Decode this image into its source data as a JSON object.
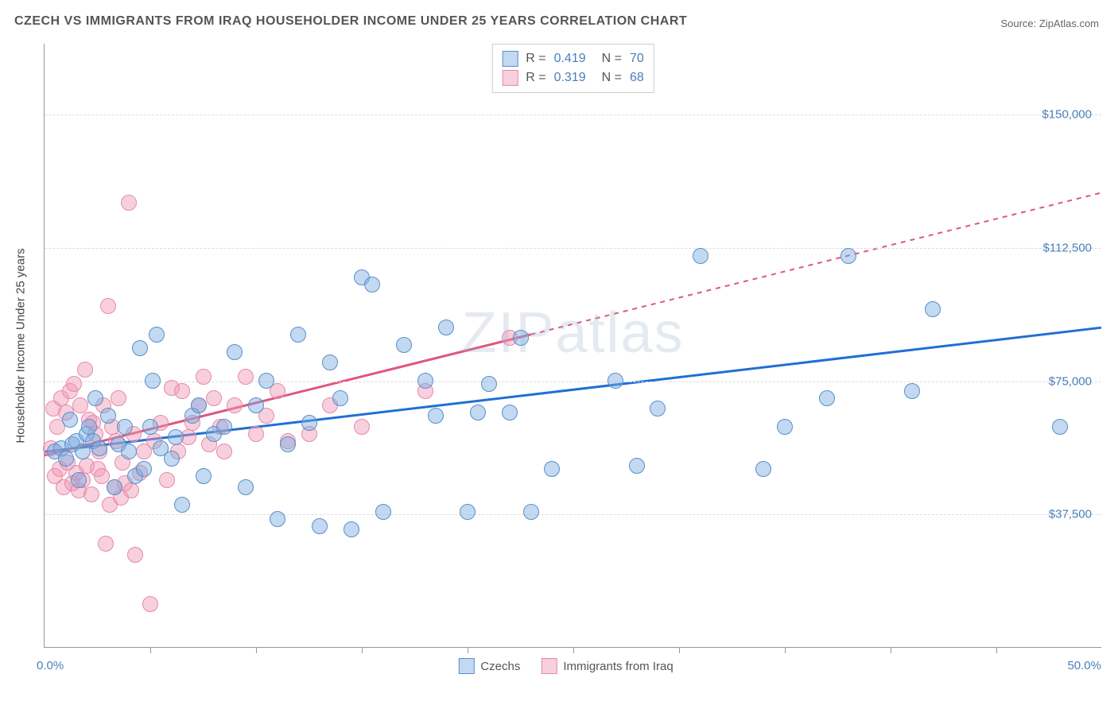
{
  "title": "CZECH VS IMMIGRANTS FROM IRAQ HOUSEHOLDER INCOME UNDER 25 YEARS CORRELATION CHART",
  "source": "Source: ZipAtlas.com",
  "watermark": "ZIPatlas",
  "chart": {
    "type": "scatter",
    "background_color": "#ffffff",
    "grid_color": "#dddddd",
    "axis_color": "#999999",
    "text_color": "#555555",
    "value_color": "#4a7ebb",
    "xlim": [
      0,
      50
    ],
    "ylim": [
      0,
      170000
    ],
    "x_axis": {
      "label_left": "0.0%",
      "label_right": "50.0%",
      "tick_positions_pct": [
        10,
        20,
        30,
        40,
        50,
        60,
        70,
        80,
        90
      ]
    },
    "y_axis": {
      "title": "Householder Income Under 25 years",
      "ticks": [
        {
          "value": 37500,
          "label": "$37,500"
        },
        {
          "value": 75000,
          "label": "$75,000"
        },
        {
          "value": 112500,
          "label": "$112,500"
        },
        {
          "value": 150000,
          "label": "$150,000"
        }
      ]
    },
    "series": [
      {
        "name": "Czechs",
        "label": "Czechs",
        "fill_color": "rgba(120,170,225,0.45)",
        "stroke_color": "#5a8fc8",
        "line_color": "#1f6fd4",
        "marker_radius": 10,
        "R": "0.419",
        "N": "70",
        "trend": {
          "x1": 0,
          "y1": 55000,
          "x2": 50,
          "y2": 90000,
          "solid_until_x": 50
        },
        "points": [
          [
            0.5,
            55000
          ],
          [
            0.8,
            56000
          ],
          [
            1.0,
            53000
          ],
          [
            1.2,
            64000
          ],
          [
            1.3,
            57000
          ],
          [
            1.5,
            58000
          ],
          [
            1.6,
            47000
          ],
          [
            1.8,
            55000
          ],
          [
            2.0,
            60000
          ],
          [
            2.1,
            62000
          ],
          [
            2.3,
            58000
          ],
          [
            2.4,
            70000
          ],
          [
            2.6,
            56000
          ],
          [
            3.0,
            65000
          ],
          [
            3.3,
            45000
          ],
          [
            3.5,
            57000
          ],
          [
            3.8,
            62000
          ],
          [
            4.0,
            55000
          ],
          [
            4.3,
            48000
          ],
          [
            4.5,
            84000
          ],
          [
            4.7,
            50000
          ],
          [
            5.0,
            62000
          ],
          [
            5.1,
            75000
          ],
          [
            5.3,
            88000
          ],
          [
            5.5,
            56000
          ],
          [
            6.0,
            53000
          ],
          [
            6.2,
            59000
          ],
          [
            6.5,
            40000
          ],
          [
            7.0,
            65000
          ],
          [
            7.3,
            68000
          ],
          [
            7.5,
            48000
          ],
          [
            8.0,
            60000
          ],
          [
            8.5,
            62000
          ],
          [
            9.0,
            83000
          ],
          [
            9.5,
            45000
          ],
          [
            10.0,
            68000
          ],
          [
            10.5,
            75000
          ],
          [
            11.0,
            36000
          ],
          [
            11.5,
            57000
          ],
          [
            12.0,
            88000
          ],
          [
            12.5,
            63000
          ],
          [
            13.0,
            34000
          ],
          [
            13.5,
            80000
          ],
          [
            14.0,
            70000
          ],
          [
            14.5,
            33000
          ],
          [
            15.0,
            104000
          ],
          [
            15.5,
            102000
          ],
          [
            16.0,
            38000
          ],
          [
            17.0,
            85000
          ],
          [
            18.0,
            75000
          ],
          [
            18.5,
            65000
          ],
          [
            19.0,
            90000
          ],
          [
            20.0,
            38000
          ],
          [
            20.5,
            66000
          ],
          [
            21.0,
            74000
          ],
          [
            22.0,
            66000
          ],
          [
            22.5,
            87000
          ],
          [
            23.0,
            38000
          ],
          [
            24.0,
            50000
          ],
          [
            27.0,
            75000
          ],
          [
            28.0,
            51000
          ],
          [
            29.0,
            67000
          ],
          [
            31.0,
            110000
          ],
          [
            34.0,
            50000
          ],
          [
            35.0,
            62000
          ],
          [
            37.0,
            70000
          ],
          [
            38.0,
            110000
          ],
          [
            41.0,
            72000
          ],
          [
            42.0,
            95000
          ],
          [
            48.0,
            62000
          ]
        ]
      },
      {
        "name": "Immigrants from Iraq",
        "label": "Immigrants from Iraq",
        "fill_color": "rgba(240,150,180,0.45)",
        "stroke_color": "#e68aa8",
        "line_color": "#e05580",
        "marker_radius": 10,
        "R": "0.319",
        "N": "68",
        "trend": {
          "x1": 0,
          "y1": 54000,
          "x2": 50,
          "y2": 128000,
          "solid_until_x": 23
        },
        "points": [
          [
            0.3,
            56000
          ],
          [
            0.4,
            67000
          ],
          [
            0.5,
            48000
          ],
          [
            0.6,
            62000
          ],
          [
            0.7,
            50000
          ],
          [
            0.8,
            70000
          ],
          [
            0.9,
            45000
          ],
          [
            1.0,
            66000
          ],
          [
            1.1,
            52000
          ],
          [
            1.2,
            72000
          ],
          [
            1.3,
            46000
          ],
          [
            1.4,
            74000
          ],
          [
            1.5,
            49000
          ],
          [
            1.6,
            44000
          ],
          [
            1.7,
            68000
          ],
          [
            1.8,
            47000
          ],
          [
            1.9,
            78000
          ],
          [
            2.0,
            51000
          ],
          [
            2.1,
            64000
          ],
          [
            2.2,
            43000
          ],
          [
            2.3,
            63000
          ],
          [
            2.4,
            60000
          ],
          [
            2.5,
            50000
          ],
          [
            2.6,
            55000
          ],
          [
            2.7,
            48000
          ],
          [
            2.8,
            68000
          ],
          [
            2.9,
            29000
          ],
          [
            3.0,
            96000
          ],
          [
            3.1,
            40000
          ],
          [
            3.2,
            62000
          ],
          [
            3.3,
            45000
          ],
          [
            3.4,
            58000
          ],
          [
            3.5,
            70000
          ],
          [
            3.6,
            42000
          ],
          [
            3.7,
            52000
          ],
          [
            3.8,
            46000
          ],
          [
            4.0,
            125000
          ],
          [
            4.1,
            44000
          ],
          [
            4.2,
            60000
          ],
          [
            4.3,
            26000
          ],
          [
            4.5,
            49000
          ],
          [
            4.7,
            55000
          ],
          [
            5.0,
            12000
          ],
          [
            5.2,
            58000
          ],
          [
            5.5,
            63000
          ],
          [
            5.8,
            47000
          ],
          [
            6.0,
            73000
          ],
          [
            6.3,
            55000
          ],
          [
            6.5,
            72000
          ],
          [
            6.8,
            59000
          ],
          [
            7.0,
            63000
          ],
          [
            7.3,
            68000
          ],
          [
            7.5,
            76000
          ],
          [
            7.8,
            57000
          ],
          [
            8.0,
            70000
          ],
          [
            8.3,
            62000
          ],
          [
            8.5,
            55000
          ],
          [
            9.0,
            68000
          ],
          [
            9.5,
            76000
          ],
          [
            10.0,
            60000
          ],
          [
            10.5,
            65000
          ],
          [
            11.0,
            72000
          ],
          [
            11.5,
            58000
          ],
          [
            12.5,
            60000
          ],
          [
            13.5,
            68000
          ],
          [
            15.0,
            62000
          ],
          [
            18.0,
            72000
          ],
          [
            22.0,
            87000
          ]
        ]
      }
    ],
    "legend_bottom": [
      {
        "label": "Czechs",
        "fill": "rgba(120,170,225,0.45)",
        "stroke": "#5a8fc8"
      },
      {
        "label": "Immigrants from Iraq",
        "fill": "rgba(240,150,180,0.45)",
        "stroke": "#e68aa8"
      }
    ]
  }
}
